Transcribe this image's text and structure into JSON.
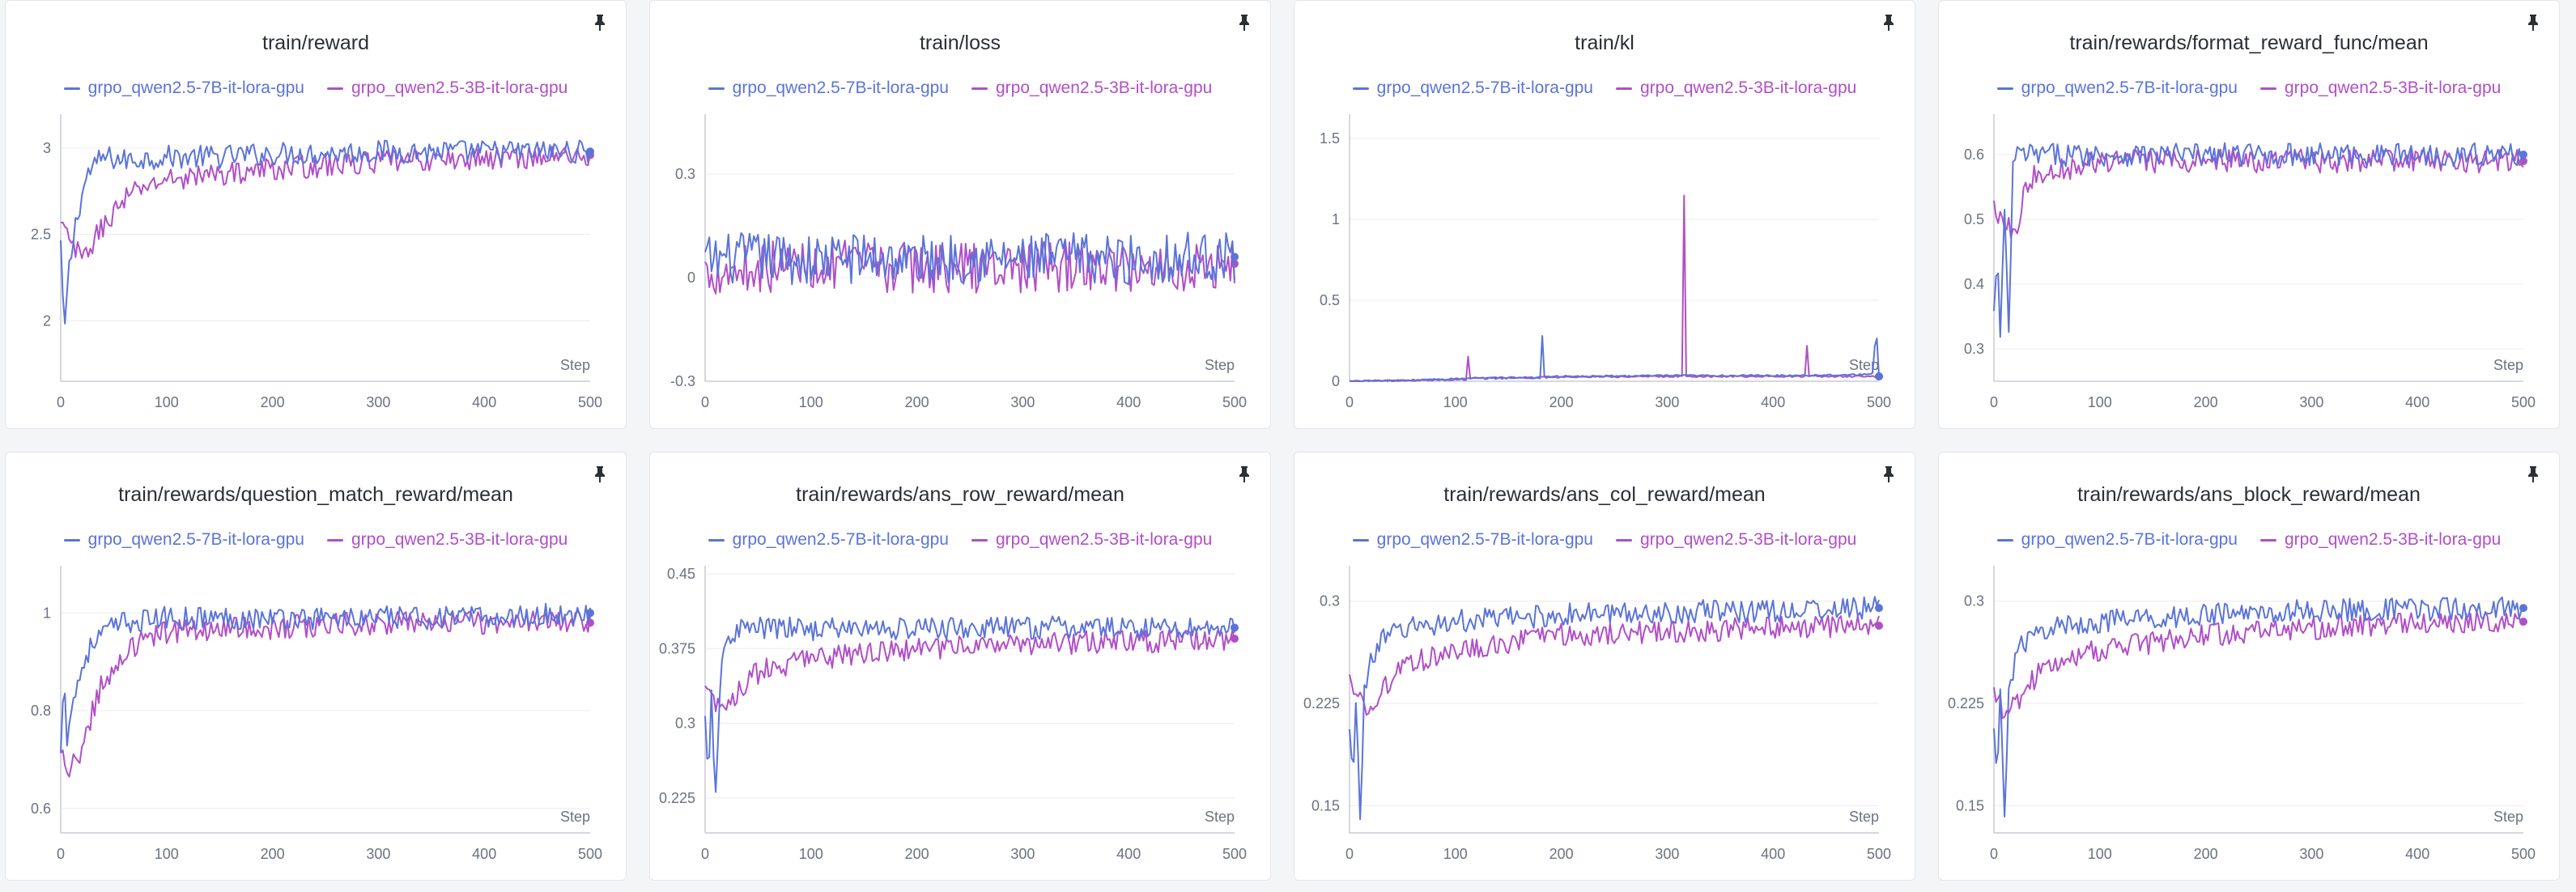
{
  "step_label": "Step",
  "colors": {
    "series_a": "#5b74d8",
    "series_b": "#b14fc7"
  },
  "chart_data": [
    {
      "type": "line",
      "title": "train/reward",
      "xlim": [
        0,
        500
      ],
      "ylim": [
        1.65,
        3.15
      ],
      "xticks": [
        0,
        100,
        200,
        300,
        400,
        500
      ],
      "yticks": [
        2,
        2.5,
        3
      ],
      "ytick_labels": [
        "2",
        "2.5",
        "3"
      ],
      "series": [
        {
          "name": "grpo_qwen2.5-7B-it-lora-gpu",
          "x": [
            0,
            3,
            8,
            15,
            25,
            40,
            60,
            100,
            150,
            200,
            250,
            300,
            350,
            400,
            450,
            500
          ],
          "y": [
            2.45,
            1.9,
            2.3,
            2.6,
            2.85,
            2.95,
            2.93,
            2.95,
            2.95,
            2.97,
            2.97,
            2.98,
            2.98,
            2.98,
            2.98,
            2.98
          ]
        },
        {
          "name": "grpo_qwen2.5-3B-it-lora-gpu",
          "x": [
            0,
            10,
            20,
            30,
            40,
            60,
            80,
            100,
            150,
            200,
            250,
            300,
            350,
            400,
            450,
            500
          ],
          "y": [
            2.55,
            2.45,
            2.35,
            2.45,
            2.55,
            2.7,
            2.78,
            2.82,
            2.85,
            2.88,
            2.9,
            2.92,
            2.93,
            2.94,
            2.95,
            2.96
          ]
        }
      ]
    },
    {
      "type": "line",
      "title": "train/loss",
      "xlim": [
        0,
        500
      ],
      "ylim": [
        -0.3,
        0.45
      ],
      "xticks": [
        0,
        100,
        200,
        300,
        400,
        500
      ],
      "yticks": [
        -0.3,
        0,
        0.3
      ],
      "ytick_labels": [
        "-0.3",
        "0",
        "0.3"
      ],
      "series": [
        {
          "name": "grpo_qwen2.5-7B-it-lora-gpu",
          "x": [
            0,
            50,
            100,
            150,
            200,
            250,
            300,
            350,
            400,
            450,
            500
          ],
          "y": [
            0.05,
            0.06,
            0.05,
            0.06,
            0.05,
            0.06,
            0.05,
            0.06,
            0.05,
            0.06,
            0.06
          ]
        },
        {
          "name": "grpo_qwen2.5-3B-it-lora-gpu",
          "x": [
            0,
            50,
            100,
            150,
            200,
            250,
            300,
            350,
            400,
            450,
            500
          ],
          "y": [
            0.02,
            0.03,
            0.04,
            0.03,
            0.03,
            0.03,
            0.03,
            0.03,
            0.03,
            0.03,
            0.04
          ]
        }
      ]
    },
    {
      "type": "line",
      "title": "train/kl",
      "xlim": [
        0,
        500
      ],
      "ylim": [
        0,
        1.6
      ],
      "xticks": [
        0,
        100,
        200,
        300,
        400,
        500
      ],
      "yticks": [
        0,
        0.5,
        1,
        1.5
      ],
      "ytick_labels": [
        "0",
        "0.5",
        "1",
        "1.5"
      ],
      "series": [
        {
          "name": "grpo_qwen2.5-7B-it-lora-gpu",
          "x": [
            0,
            50,
            100,
            150,
            180,
            182,
            184,
            220,
            300,
            400,
            480,
            495,
            497,
            500
          ],
          "y": [
            0,
            0.005,
            0.015,
            0.02,
            0.02,
            0.28,
            0.03,
            0.03,
            0.035,
            0.035,
            0.04,
            0.05,
            0.38,
            0.03
          ]
        },
        {
          "name": "grpo_qwen2.5-3B-it-lora-gpu",
          "x": [
            0,
            50,
            100,
            110,
            112,
            114,
            200,
            300,
            314,
            316,
            318,
            400,
            430,
            432,
            434,
            500
          ],
          "y": [
            0,
            0.005,
            0.01,
            0.01,
            0.15,
            0.02,
            0.025,
            0.03,
            0.03,
            1.15,
            0.03,
            0.03,
            0.03,
            0.22,
            0.03,
            0.03
          ]
        }
      ]
    },
    {
      "type": "line",
      "title": "train/rewards/format_reward_func/mean",
      "xlim": [
        0,
        500
      ],
      "ylim": [
        0.25,
        0.65
      ],
      "xticks": [
        0,
        100,
        200,
        300,
        400,
        500
      ],
      "yticks": [
        0.3,
        0.4,
        0.5,
        0.6
      ],
      "ytick_labels": [
        "0.3",
        "0.4",
        "0.5",
        "0.6"
      ],
      "series": [
        {
          "name": "grpo_qwen2.5-7B-it-lora-gpu",
          "x": [
            0,
            3,
            6,
            10,
            14,
            18,
            22,
            30,
            40,
            60,
            100,
            200,
            300,
            400,
            500
          ],
          "y": [
            0.35,
            0.45,
            0.32,
            0.5,
            0.33,
            0.58,
            0.6,
            0.6,
            0.6,
            0.6,
            0.6,
            0.6,
            0.6,
            0.6,
            0.6
          ]
        },
        {
          "name": "grpo_qwen2.5-3B-it-lora-gpu",
          "x": [
            0,
            10,
            20,
            30,
            40,
            60,
            80,
            100,
            150,
            200,
            300,
            400,
            500
          ],
          "y": [
            0.52,
            0.5,
            0.48,
            0.55,
            0.57,
            0.58,
            0.58,
            0.59,
            0.59,
            0.59,
            0.59,
            0.59,
            0.59
          ]
        }
      ]
    },
    {
      "type": "line",
      "title": "train/rewards/question_match_reward/mean",
      "xlim": [
        0,
        500
      ],
      "ylim": [
        0.55,
        1.08
      ],
      "xticks": [
        0,
        100,
        200,
        300,
        400,
        500
      ],
      "yticks": [
        0.6,
        0.8,
        1
      ],
      "ytick_labels": [
        "0.6",
        "0.8",
        "1"
      ],
      "series": [
        {
          "name": "grpo_qwen2.5-7B-it-lora-gpu",
          "x": [
            0,
            3,
            6,
            10,
            15,
            25,
            40,
            60,
            100,
            200,
            300,
            400,
            500
          ],
          "y": [
            0.7,
            0.9,
            0.75,
            0.8,
            0.85,
            0.92,
            0.96,
            0.98,
            0.99,
            0.99,
            0.99,
            0.99,
            1.0
          ]
        },
        {
          "name": "grpo_qwen2.5-3B-it-lora-gpu",
          "x": [
            0,
            10,
            20,
            30,
            40,
            60,
            80,
            100,
            150,
            200,
            300,
            400,
            500
          ],
          "y": [
            0.7,
            0.68,
            0.72,
            0.8,
            0.86,
            0.92,
            0.95,
            0.96,
            0.97,
            0.97,
            0.98,
            0.98,
            0.98
          ]
        }
      ]
    },
    {
      "type": "line",
      "title": "train/rewards/ans_row_reward/mean",
      "xlim": [
        0,
        500
      ],
      "ylim": [
        0.19,
        0.45
      ],
      "xticks": [
        0,
        100,
        200,
        300,
        400,
        500
      ],
      "yticks": [
        0.225,
        0.3,
        0.375,
        0.45
      ],
      "ytick_labels": [
        "0.225",
        "0.3",
        "0.375",
        "0.45"
      ],
      "series": [
        {
          "name": "grpo_qwen2.5-7B-it-lora-gpu",
          "x": [
            0,
            3,
            6,
            10,
            14,
            20,
            30,
            50,
            100,
            200,
            300,
            400,
            500
          ],
          "y": [
            0.3,
            0.23,
            0.33,
            0.22,
            0.34,
            0.38,
            0.395,
            0.395,
            0.395,
            0.395,
            0.396,
            0.396,
            0.396
          ]
        },
        {
          "name": "grpo_qwen2.5-3B-it-lora-gpu",
          "x": [
            0,
            10,
            20,
            30,
            40,
            60,
            80,
            100,
            150,
            200,
            300,
            400,
            500
          ],
          "y": [
            0.33,
            0.32,
            0.31,
            0.33,
            0.345,
            0.355,
            0.36,
            0.365,
            0.37,
            0.375,
            0.38,
            0.382,
            0.385
          ]
        }
      ]
    },
    {
      "type": "line",
      "title": "train/rewards/ans_col_reward/mean",
      "xlim": [
        0,
        500
      ],
      "ylim": [
        0.13,
        0.32
      ],
      "xticks": [
        0,
        100,
        200,
        300,
        400,
        500
      ],
      "yticks": [
        0.15,
        0.225,
        0.3
      ],
      "ytick_labels": [
        "0.15",
        "0.225",
        "0.3"
      ],
      "series": [
        {
          "name": "grpo_qwen2.5-7B-it-lora-gpu",
          "x": [
            0,
            3,
            6,
            10,
            14,
            20,
            30,
            50,
            100,
            200,
            300,
            400,
            500
          ],
          "y": [
            0.2,
            0.17,
            0.23,
            0.14,
            0.23,
            0.26,
            0.27,
            0.28,
            0.285,
            0.29,
            0.292,
            0.293,
            0.295
          ]
        },
        {
          "name": "grpo_qwen2.5-3B-it-lora-gpu",
          "x": [
            0,
            10,
            20,
            30,
            40,
            60,
            80,
            100,
            150,
            200,
            300,
            400,
            500
          ],
          "y": [
            0.24,
            0.23,
            0.22,
            0.235,
            0.245,
            0.255,
            0.26,
            0.265,
            0.27,
            0.275,
            0.278,
            0.28,
            0.282
          ]
        }
      ]
    },
    {
      "type": "line",
      "title": "train/rewards/ans_block_reward/mean",
      "xlim": [
        0,
        500
      ],
      "ylim": [
        0.13,
        0.32
      ],
      "xticks": [
        0,
        100,
        200,
        300,
        400,
        500
      ],
      "yticks": [
        0.15,
        0.225,
        0.3
      ],
      "ytick_labels": [
        "0.15",
        "0.225",
        "0.3"
      ],
      "series": [
        {
          "name": "grpo_qwen2.5-7B-it-lora-gpu",
          "x": [
            0,
            3,
            6,
            10,
            14,
            20,
            30,
            50,
            100,
            200,
            300,
            400,
            500
          ],
          "y": [
            0.2,
            0.17,
            0.23,
            0.15,
            0.23,
            0.26,
            0.27,
            0.28,
            0.285,
            0.29,
            0.293,
            0.294,
            0.295
          ]
        },
        {
          "name": "grpo_qwen2.5-3B-it-lora-gpu",
          "x": [
            0,
            10,
            20,
            30,
            40,
            60,
            80,
            100,
            150,
            200,
            300,
            400,
            500
          ],
          "y": [
            0.23,
            0.22,
            0.225,
            0.235,
            0.245,
            0.255,
            0.26,
            0.265,
            0.27,
            0.275,
            0.28,
            0.283,
            0.285
          ]
        }
      ]
    }
  ]
}
